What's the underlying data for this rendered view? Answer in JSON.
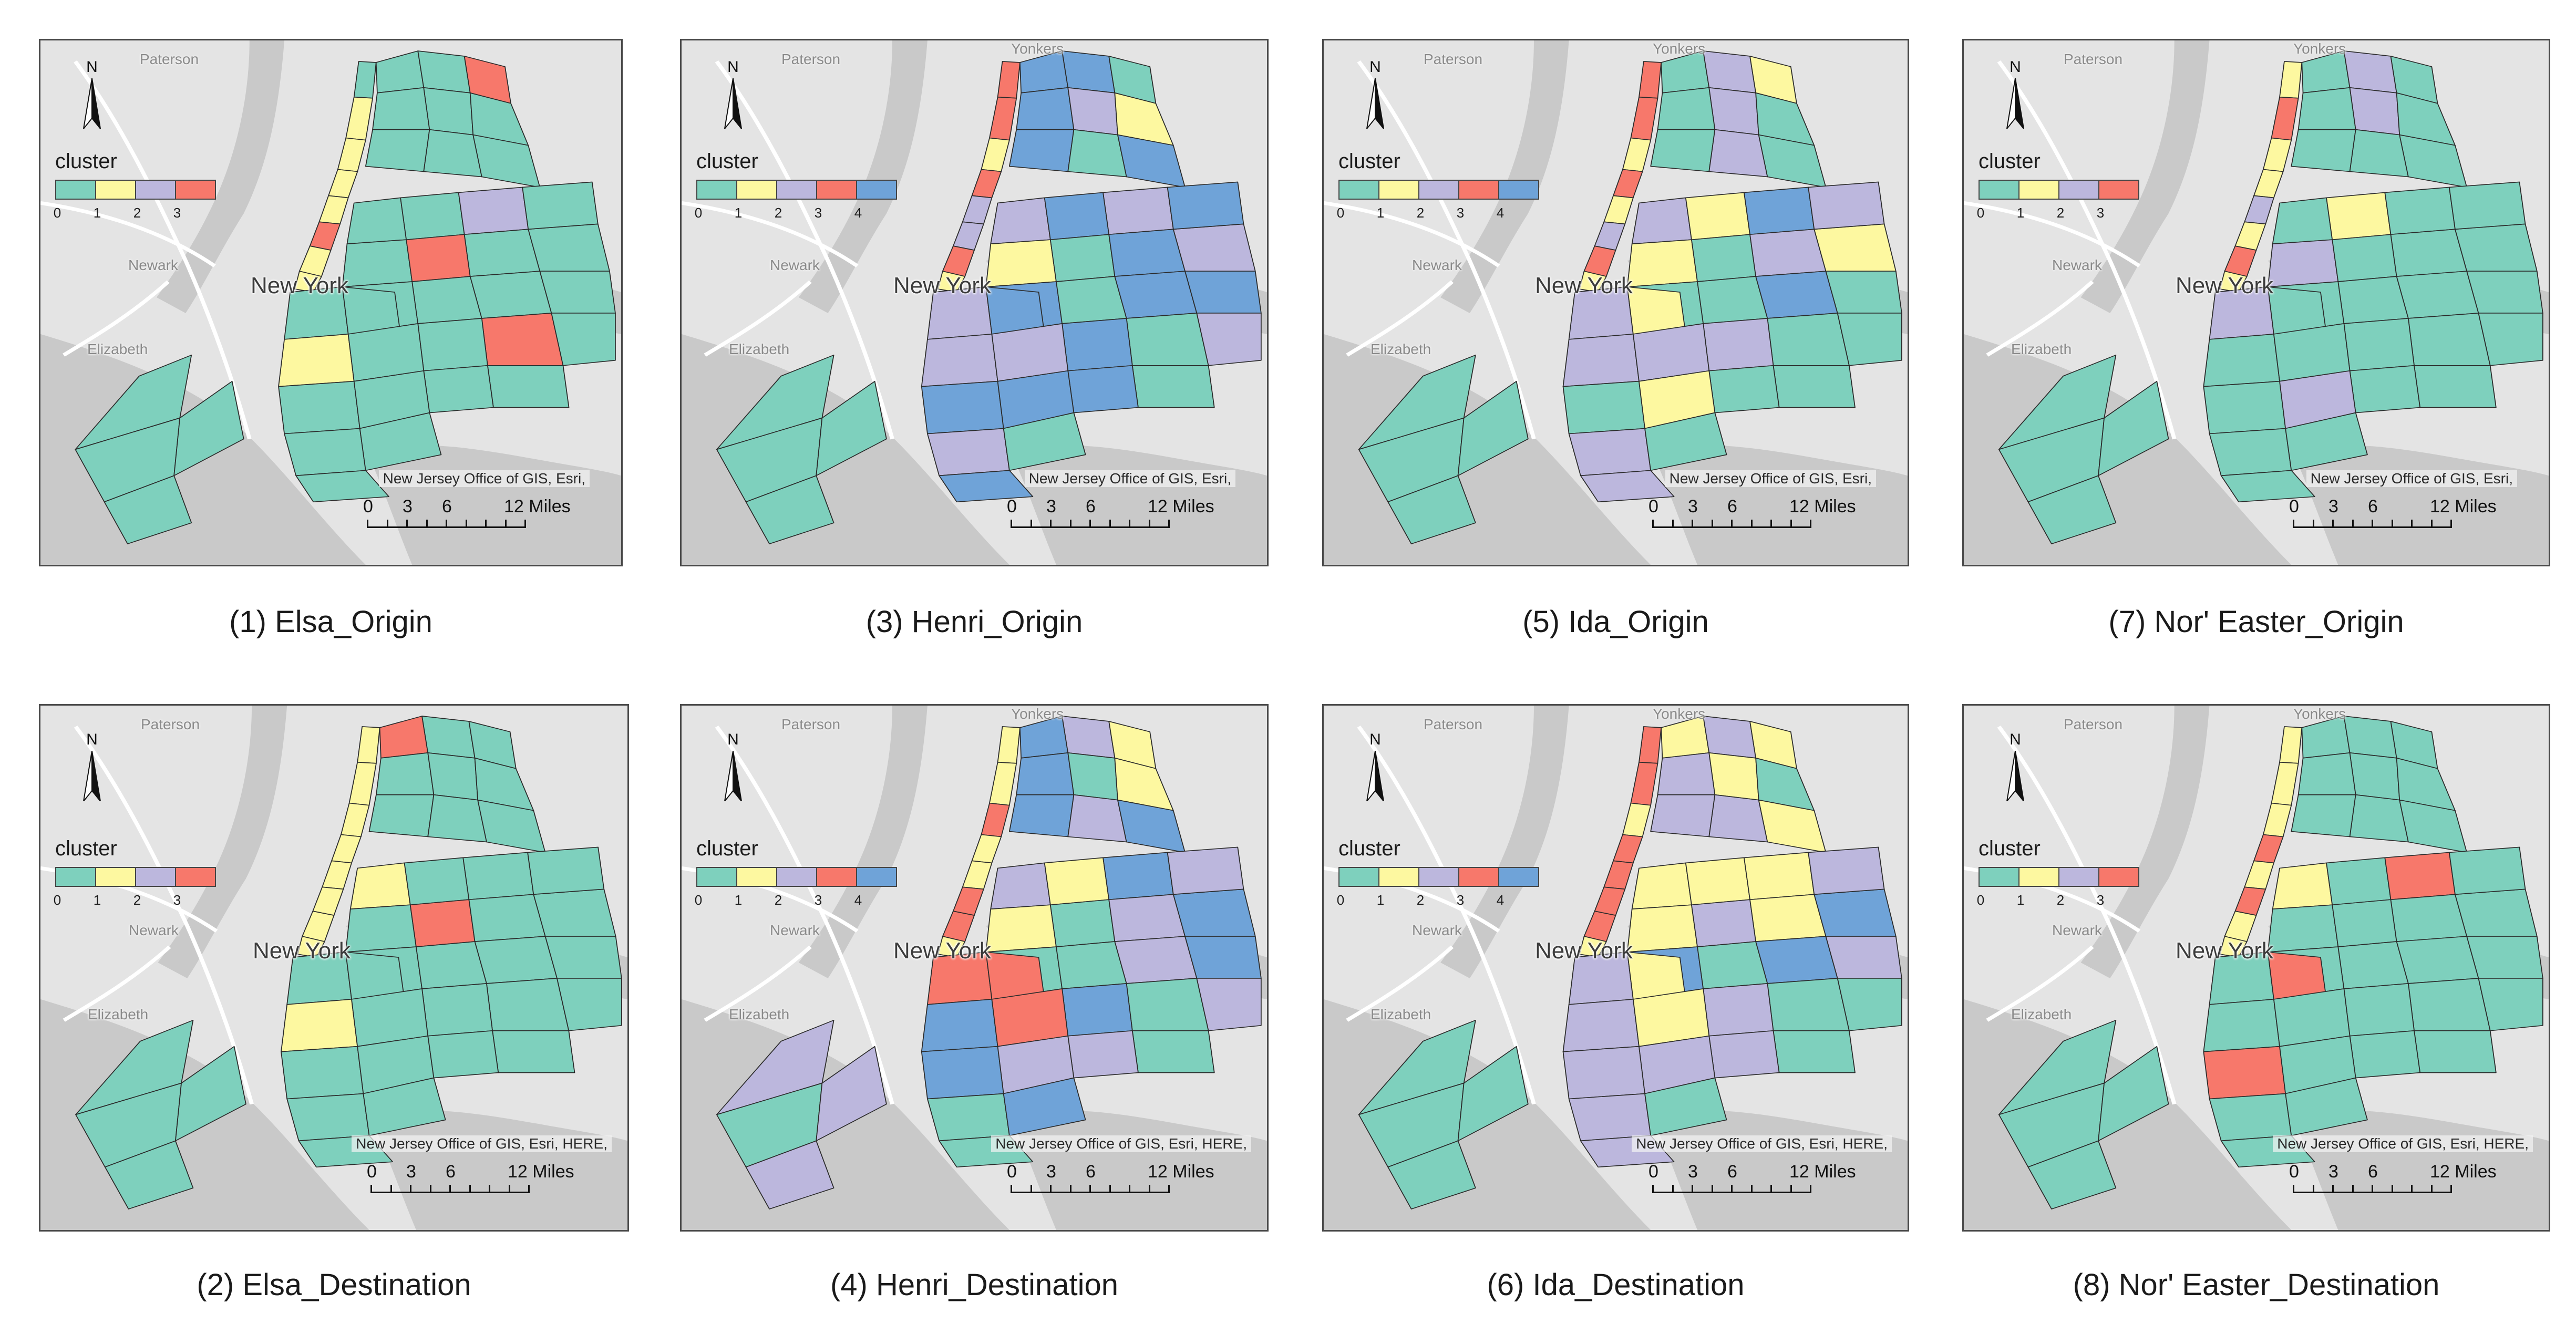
{
  "colors": {
    "cluster_0": "#7ed0bd",
    "cluster_1": "#fdf8a0",
    "cluster_2": "#bcb7dd",
    "cluster_3": "#f7786b",
    "cluster_4": "#6fa3d8",
    "land": "#e4e4e4",
    "water": "#c9c9c9",
    "highway": "#ffffff",
    "boundary": "#2b2b2b"
  },
  "panels": [
    {
      "id": "1",
      "caption": "(1) Elsa_Origin",
      "legend_title": "cluster",
      "legend_classes": [
        "0",
        "1",
        "2",
        "3"
      ],
      "places": [
        {
          "name": "Paterson"
        },
        {
          "name": "Newark"
        },
        {
          "name": "Elizabeth"
        }
      ],
      "city": "New York",
      "north": "N",
      "attribution": "New Jersey Office of GIS, Esri,",
      "scale": [
        "0",
        "3",
        "6",
        "12 Miles"
      ],
      "regions": {
        "manhattan": [
          0,
          1,
          1,
          1,
          1,
          3,
          1,
          1
        ],
        "bronx": [
          0,
          0,
          3,
          0,
          0,
          0,
          0,
          0,
          0
        ],
        "queens_w": [
          0,
          0,
          2,
          0,
          3,
          0,
          0,
          0
        ],
        "queens_e": [
          0,
          0,
          0,
          0,
          3,
          0,
          0,
          0,
          0
        ],
        "brooklyn": [
          0,
          0,
          1,
          0,
          0,
          0,
          0,
          0,
          0
        ],
        "staten": [
          0,
          0,
          0,
          0
        ]
      }
    },
    {
      "id": "3",
      "caption": "(3) Henri_Origin",
      "legend_title": "cluster",
      "legend_classes": [
        "0",
        "1",
        "2",
        "3",
        "4"
      ],
      "places": [
        {
          "name": "Paterson"
        },
        {
          "name": "Yonkers"
        },
        {
          "name": "Newark"
        },
        {
          "name": "Elizabeth"
        }
      ],
      "city": "New York",
      "north": "N",
      "attribution": "New Jersey Office of GIS, Esri,",
      "scale": [
        "0",
        "3",
        "6",
        "12 Miles"
      ],
      "regions": {
        "manhattan": [
          3,
          3,
          1,
          3,
          2,
          2,
          3,
          1
        ],
        "bronx": [
          4,
          4,
          0,
          4,
          2,
          1,
          4,
          0,
          4
        ],
        "queens_w": [
          2,
          4,
          2,
          1,
          0,
          4,
          2,
          4
        ],
        "queens_e": [
          4,
          0,
          4,
          4,
          0,
          4,
          2,
          0,
          4
        ],
        "brooklyn": [
          2,
          4,
          2,
          2,
          4,
          4,
          2,
          0,
          4
        ],
        "staten": [
          0,
          0,
          0,
          0
        ]
      }
    },
    {
      "id": "5",
      "caption": "(5) Ida_Origin",
      "legend_title": "cluster",
      "legend_classes": [
        "0",
        "1",
        "2",
        "3",
        "4"
      ],
      "places": [
        {
          "name": "Paterson"
        },
        {
          "name": "Yonkers"
        },
        {
          "name": "Newark"
        },
        {
          "name": "Elizabeth"
        }
      ],
      "city": "New York",
      "north": "N",
      "attribution": "New Jersey Office of GIS, Esri,",
      "scale": [
        "0",
        "3",
        "6",
        "12 Miles"
      ],
      "regions": {
        "manhattan": [
          3,
          3,
          1,
          3,
          1,
          2,
          3,
          1
        ],
        "bronx": [
          0,
          2,
          1,
          0,
          2,
          0,
          0,
          2,
          0
        ],
        "queens_w": [
          2,
          1,
          4,
          1,
          0,
          2,
          1,
          2
        ],
        "queens_e": [
          0,
          0,
          4,
          0,
          0,
          2,
          0,
          0,
          0
        ],
        "brooklyn": [
          2,
          1,
          2,
          2,
          0,
          1,
          2,
          0,
          2
        ],
        "staten": [
          0,
          0,
          0,
          0
        ]
      }
    },
    {
      "id": "7",
      "caption": "(7) Nor' Easter_Origin",
      "legend_title": "cluster",
      "legend_classes": [
        "0",
        "1",
        "2",
        "3"
      ],
      "places": [
        {
          "name": "Paterson"
        },
        {
          "name": "Yonkers"
        },
        {
          "name": "Newark"
        },
        {
          "name": "Elizabeth"
        }
      ],
      "city": "New York",
      "north": "N",
      "attribution": "New Jersey Office of GIS, Esri,",
      "scale": [
        "0",
        "3",
        "6",
        "12 Miles"
      ],
      "regions": {
        "manhattan": [
          1,
          3,
          1,
          1,
          2,
          1,
          3,
          1
        ],
        "bronx": [
          0,
          2,
          0,
          0,
          2,
          0,
          0,
          0,
          0
        ],
        "queens_w": [
          0,
          1,
          0,
          2,
          0,
          0,
          0,
          0
        ],
        "queens_e": [
          0,
          0,
          0,
          0,
          0,
          0,
          0,
          0,
          0
        ],
        "brooklyn": [
          2,
          0,
          0,
          0,
          0,
          2,
          0,
          0,
          0
        ],
        "staten": [
          0,
          0,
          0,
          0
        ]
      }
    },
    {
      "id": "2",
      "caption": "(2) Elsa_Destination",
      "legend_title": "cluster",
      "legend_classes": [
        "0",
        "1",
        "2",
        "3"
      ],
      "places": [
        {
          "name": "Paterson"
        },
        {
          "name": "Newark"
        },
        {
          "name": "Elizabeth"
        }
      ],
      "city": "New York",
      "north": "N",
      "attribution": "New Jersey Office of GIS, Esri, HERE,",
      "scale": [
        "0",
        "3",
        "6",
        "12 Miles"
      ],
      "regions": {
        "manhattan": [
          1,
          1,
          1,
          1,
          1,
          1,
          1,
          1
        ],
        "bronx": [
          3,
          0,
          0,
          0,
          0,
          0,
          0,
          0,
          0
        ],
        "queens_w": [
          1,
          0,
          0,
          0,
          3,
          0,
          0,
          0
        ],
        "queens_e": [
          0,
          0,
          0,
          0,
          0,
          0,
          0,
          0,
          0
        ],
        "brooklyn": [
          0,
          0,
          1,
          0,
          0,
          0,
          0,
          0,
          0
        ],
        "staten": [
          0,
          0,
          0,
          0
        ]
      }
    },
    {
      "id": "4",
      "caption": "(4) Henri_Destination",
      "legend_title": "cluster",
      "legend_classes": [
        "0",
        "1",
        "2",
        "3",
        "4"
      ],
      "places": [
        {
          "name": "Paterson"
        },
        {
          "name": "Yonkers"
        },
        {
          "name": "Newark"
        },
        {
          "name": "Elizabeth"
        }
      ],
      "city": "New York",
      "north": "N",
      "attribution": "New Jersey Office of GIS, Esri, HERE,",
      "scale": [
        "0",
        "3",
        "6",
        "12 Miles"
      ],
      "regions": {
        "manhattan": [
          1,
          1,
          3,
          1,
          1,
          3,
          3,
          1
        ],
        "bronx": [
          4,
          2,
          1,
          4,
          0,
          1,
          4,
          2,
          4
        ],
        "queens_w": [
          2,
          1,
          4,
          1,
          0,
          2,
          4,
          2
        ],
        "queens_e": [
          0,
          0,
          2,
          4,
          0,
          4,
          2,
          0,
          2
        ],
        "brooklyn": [
          3,
          3,
          4,
          3,
          4,
          2,
          0,
          4,
          0
        ],
        "staten": [
          2,
          0,
          2,
          2
        ]
      }
    },
    {
      "id": "6",
      "caption": "(6) Ida_Destination",
      "legend_title": "cluster",
      "legend_classes": [
        "0",
        "1",
        "2",
        "3",
        "4"
      ],
      "places": [
        {
          "name": "Paterson"
        },
        {
          "name": "Yonkers"
        },
        {
          "name": "Newark"
        },
        {
          "name": "Elizabeth"
        }
      ],
      "city": "New York",
      "north": "N",
      "attribution": "New Jersey Office of GIS, Esri, HERE,",
      "scale": [
        "0",
        "3",
        "6",
        "12 Miles"
      ],
      "regions": {
        "manhattan": [
          3,
          3,
          1,
          3,
          3,
          3,
          3,
          1
        ],
        "bronx": [
          1,
          2,
          1,
          2,
          1,
          0,
          2,
          2,
          1
        ],
        "queens_w": [
          1,
          1,
          1,
          1,
          2,
          1,
          4,
          2
        ],
        "queens_e": [
          4,
          0,
          4,
          2,
          0,
          2,
          0,
          0,
          2
        ],
        "brooklyn": [
          2,
          1,
          2,
          1,
          2,
          2,
          2,
          0,
          2
        ],
        "staten": [
          0,
          0,
          0,
          0
        ]
      }
    },
    {
      "id": "8",
      "caption": "(8) Nor' Easter_Destination",
      "legend_title": "cluster",
      "legend_classes": [
        "0",
        "1",
        "2",
        "3"
      ],
      "places": [
        {
          "name": "Paterson"
        },
        {
          "name": "Yonkers"
        },
        {
          "name": "Newark"
        },
        {
          "name": "Elizabeth"
        }
      ],
      "city": "New York",
      "north": "N",
      "attribution": "New Jersey Office of GIS, Esri, HERE,",
      "scale": [
        "0",
        "3",
        "6",
        "12 Miles"
      ],
      "regions": {
        "manhattan": [
          1,
          1,
          1,
          3,
          1,
          3,
          1,
          1
        ],
        "bronx": [
          0,
          0,
          0,
          0,
          0,
          0,
          0,
          0,
          0
        ],
        "queens_w": [
          1,
          0,
          3,
          0,
          0,
          0,
          0,
          0
        ],
        "queens_e": [
          0,
          0,
          0,
          0,
          0,
          0,
          0,
          0,
          0
        ],
        "brooklyn": [
          0,
          3,
          0,
          0,
          3,
          0,
          0,
          0,
          0
        ],
        "staten": [
          0,
          0,
          0,
          0
        ]
      }
    }
  ]
}
